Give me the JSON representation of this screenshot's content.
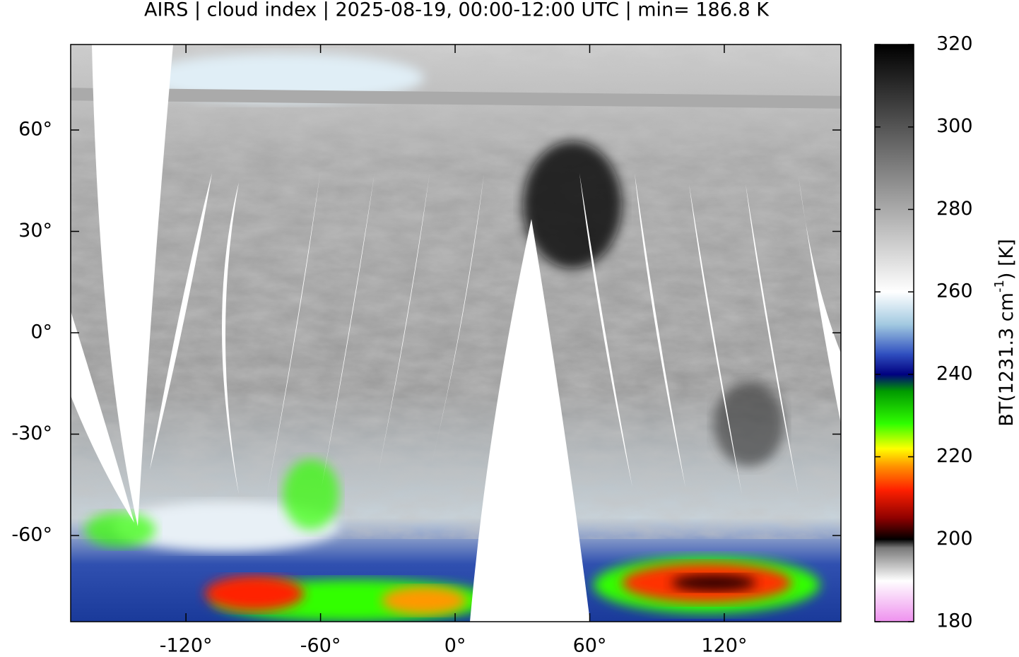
{
  "chart_data": {
    "type": "map",
    "title": "AIRS | cloud index | 2025-08-19, 00:00-12:00 UTC | min= 186.8 K",
    "xlim": [
      -171.4,
      172
    ],
    "ylim": [
      -85.5,
      85.3
    ],
    "xticks": [
      {
        "value": -120,
        "label": "-120°"
      },
      {
        "value": -60,
        "label": "-60°"
      },
      {
        "value": 0,
        "label": "0°"
      },
      {
        "value": 60,
        "label": "60°"
      },
      {
        "value": 120,
        "label": "120°"
      }
    ],
    "yticks": [
      {
        "value": -60,
        "label": "-60°"
      },
      {
        "value": -30,
        "label": "-30°"
      },
      {
        "value": 0,
        "label": "0°"
      },
      {
        "value": 30,
        "label": "30°"
      },
      {
        "value": 60,
        "label": "60°"
      }
    ],
    "colorbar": {
      "label": "BT(1231.3 cm",
      "label_sup": "-1",
      "label_end": ") [K]",
      "lim": [
        180,
        320
      ],
      "ticks": [
        180,
        200,
        220,
        240,
        260,
        280,
        300,
        320
      ],
      "colorscale": [
        {
          "value": 180,
          "color": "#ee90ee"
        },
        {
          "value": 190,
          "color": "#ffffff"
        },
        {
          "value": 198,
          "color": "#777777"
        },
        {
          "value": 200,
          "color": "#000000"
        },
        {
          "value": 205,
          "color": "#8b0000"
        },
        {
          "value": 212,
          "color": "#ff2000"
        },
        {
          "value": 218,
          "color": "#ff9900"
        },
        {
          "value": 222,
          "color": "#ffff00"
        },
        {
          "value": 228,
          "color": "#30ff00"
        },
        {
          "value": 236,
          "color": "#009900"
        },
        {
          "value": 240,
          "color": "#000080"
        },
        {
          "value": 245,
          "color": "#3050c0"
        },
        {
          "value": 252,
          "color": "#a0c8e0"
        },
        {
          "value": 260,
          "color": "#ffffff"
        },
        {
          "value": 320,
          "color": "#000000"
        }
      ]
    }
  }
}
